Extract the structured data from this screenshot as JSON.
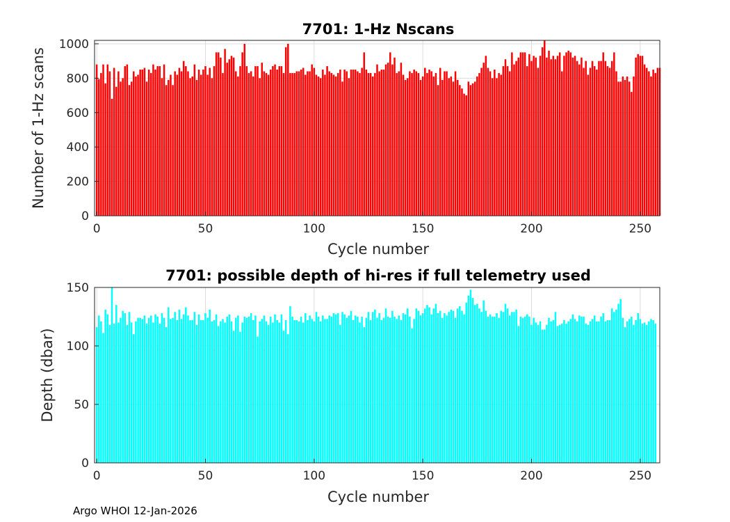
{
  "footer": {
    "credit": "Argo WHOI 12-Jan-2026"
  },
  "chart_data": [
    {
      "type": "bar",
      "title": "7701: 1-Hz Nscans",
      "xlabel": "Cycle number",
      "ylabel": "Number of 1-Hz scans",
      "xlim": [
        -1,
        259
      ],
      "ylim": [
        0,
        1020
      ],
      "xticks": [
        0,
        50,
        100,
        150,
        200,
        250
      ],
      "yticks": [
        0,
        200,
        400,
        600,
        800,
        1000
      ],
      "grid": true,
      "bar_color": "#ff0000",
      "x_start": 0,
      "values": [
        880,
        795,
        830,
        880,
        770,
        880,
        840,
        680,
        860,
        750,
        840,
        780,
        800,
        870,
        880,
        760,
        780,
        840,
        810,
        820,
        850,
        850,
        860,
        780,
        850,
        830,
        880,
        850,
        870,
        870,
        800,
        880,
        760,
        790,
        820,
        760,
        840,
        820,
        860,
        840,
        900,
        870,
        840,
        800,
        810,
        880,
        790,
        850,
        820,
        850,
        870,
        820,
        860,
        800,
        870,
        950,
        950,
        920,
        830,
        970,
        890,
        910,
        930,
        920,
        840,
        810,
        870,
        950,
        1000,
        870,
        830,
        840,
        810,
        870,
        870,
        800,
        890,
        840,
        830,
        820,
        850,
        870,
        880,
        850,
        870,
        870,
        830,
        980,
        1000,
        830,
        830,
        830,
        840,
        840,
        850,
        860,
        820,
        840,
        840,
        880,
        860,
        820,
        810,
        800,
        850,
        820,
        870,
        840,
        830,
        820,
        810,
        830,
        850,
        780,
        850,
        840,
        800,
        850,
        850,
        850,
        840,
        830,
        860,
        950,
        850,
        830,
        830,
        810,
        830,
        880,
        840,
        850,
        850,
        880,
        890,
        950,
        880,
        920,
        830,
        840,
        890,
        820,
        790,
        800,
        840,
        830,
        850,
        840,
        830,
        790,
        810,
        860,
        830,
        850,
        840,
        810,
        830,
        760,
        860,
        790,
        840,
        840,
        800,
        810,
        780,
        840,
        790,
        760,
        740,
        710,
        700,
        780,
        760,
        770,
        780,
        810,
        830,
        860,
        890,
        930,
        860,
        840,
        800,
        850,
        800,
        830,
        820,
        870,
        910,
        870,
        840,
        950,
        880,
        900,
        920,
        950,
        950,
        950,
        870,
        940,
        900,
        930,
        920,
        860,
        930,
        980,
        1020,
        920,
        960,
        910,
        930,
        910,
        930,
        950,
        840,
        930,
        950,
        960,
        950,
        920,
        930,
        900,
        880,
        920,
        860,
        900,
        820,
        860,
        900,
        870,
        850,
        900,
        900,
        950,
        900,
        870,
        860,
        900,
        950,
        840,
        780,
        780,
        810,
        790,
        810,
        780,
        720,
        810,
        920,
        940,
        930,
        930,
        880,
        860,
        840,
        810,
        850,
        830,
        860,
        860
      ]
    },
    {
      "type": "bar",
      "title": "7701: possible depth of hi-res if full telemetry used",
      "xlabel": "Cycle number",
      "ylabel": "Depth (dbar)",
      "xlim": [
        -1,
        259
      ],
      "ylim": [
        0,
        150
      ],
      "xticks": [
        0,
        50,
        100,
        150,
        200,
        250
      ],
      "yticks": [
        0,
        50,
        100,
        150
      ],
      "grid": true,
      "bar_color": "#00ffff",
      "x_start": 0,
      "values": [
        116,
        126,
        121,
        111,
        131,
        127,
        118,
        150,
        119,
        135,
        120,
        124,
        130,
        128,
        118,
        129,
        120,
        110,
        121,
        124,
        124,
        123,
        126,
        119,
        124,
        126,
        120,
        127,
        125,
        119,
        128,
        124,
        116,
        133,
        123,
        124,
        129,
        122,
        131,
        123,
        127,
        133,
        126,
        122,
        122,
        129,
        118,
        127,
        122,
        122,
        128,
        124,
        131,
        121,
        122,
        127,
        117,
        121,
        123,
        120,
        125,
        127,
        121,
        113,
        124,
        126,
        112,
        120,
        125,
        124,
        125,
        128,
        122,
        126,
        108,
        121,
        123,
        126,
        121,
        118,
        125,
        120,
        127,
        122,
        120,
        127,
        113,
        122,
        110,
        134,
        125,
        122,
        122,
        121,
        125,
        120,
        128,
        122,
        126,
        123,
        121,
        129,
        125,
        121,
        126,
        123,
        123,
        126,
        125,
        128,
        127,
        128,
        118,
        129,
        127,
        124,
        126,
        130,
        122,
        126,
        125,
        120,
        125,
        116,
        124,
        129,
        122,
        129,
        131,
        124,
        128,
        122,
        124,
        132,
        125,
        124,
        130,
        125,
        123,
        126,
        122,
        128,
        127,
        132,
        125,
        115,
        123,
        132,
        130,
        126,
        128,
        132,
        135,
        133,
        127,
        132,
        136,
        128,
        130,
        124,
        128,
        126,
        129,
        131,
        130,
        124,
        132,
        134,
        130,
        127,
        137,
        143,
        148,
        141,
        135,
        136,
        132,
        129,
        139,
        130,
        125,
        127,
        125,
        125,
        128,
        124,
        130,
        129,
        136,
        132,
        126,
        129,
        129,
        131,
        117,
        125,
        124,
        125,
        127,
        125,
        118,
        124,
        120,
        118,
        121,
        114,
        114,
        118,
        124,
        121,
        122,
        129,
        117,
        118,
        119,
        122,
        119,
        121,
        123,
        127,
        123,
        121,
        126,
        125,
        125,
        119,
        118,
        121,
        123,
        126,
        121,
        121,
        125,
        128,
        121,
        122,
        122,
        132,
        129,
        131,
        136,
        140,
        124,
        116,
        121,
        123,
        125,
        118,
        122,
        128,
        123,
        119,
        120,
        118,
        121,
        123,
        122,
        119
      ]
    }
  ]
}
